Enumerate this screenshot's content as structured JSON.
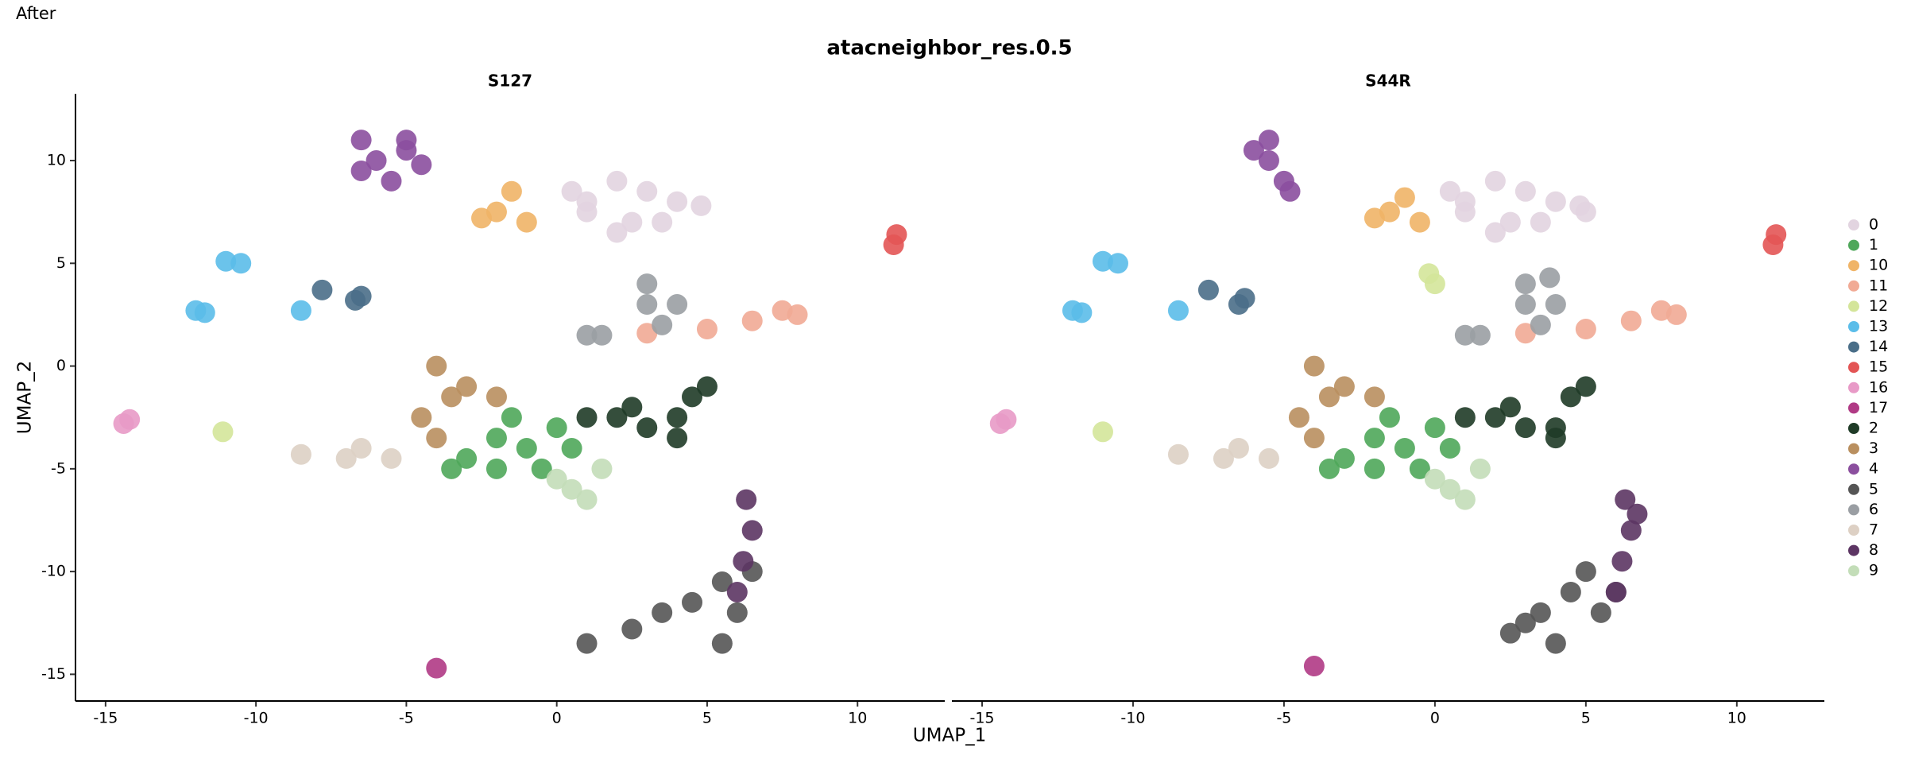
{
  "corner_text": "After",
  "chart_data": {
    "type": "scatter",
    "title": "atacneighbor_res.0.5",
    "x_label": "UMAP_1",
    "y_label": "UMAP_2",
    "xlim": [
      -16,
      12.9
    ],
    "ylim": [
      -16.3,
      13.25
    ],
    "xticks": [
      -15,
      -10,
      -5,
      0,
      5,
      10
    ],
    "yticks": [
      -15,
      -10,
      -5,
      0,
      5,
      10
    ],
    "legend": "right",
    "panels": [
      {
        "title": "S127"
      },
      {
        "title": "S44R"
      }
    ],
    "series": [
      {
        "name": "0",
        "color": "#e2d4e0",
        "x": [
          [
            1,
            2,
            3,
            4,
            2.5,
            1,
            3.5,
            0.5,
            4.8,
            2
          ],
          [
            1,
            2,
            3,
            4,
            2.5,
            1,
            3.5,
            0.5,
            4.8,
            2,
            5
          ]
        ],
        "y": [
          [
            8,
            9,
            8.5,
            8,
            7,
            7.5,
            7,
            8.5,
            7.8,
            6.5
          ],
          [
            8,
            9,
            8.5,
            8,
            7,
            7.5,
            7,
            8.5,
            7.8,
            6.5,
            7.5
          ]
        ]
      },
      {
        "name": "1",
        "color": "#4fa75a",
        "x": [
          [
            -3,
            -2,
            -1,
            0,
            -2,
            -0.5,
            0.5,
            -3.5,
            -1.5
          ],
          [
            -3,
            -2,
            -1,
            0,
            -2,
            -0.5,
            0.5,
            -3.5,
            -1.5
          ]
        ],
        "y": [
          [
            -4.5,
            -3.5,
            -4,
            -3,
            -5,
            -5,
            -4,
            -5,
            -2.5
          ],
          [
            -4.5,
            -3.5,
            -4,
            -3,
            -5,
            -5,
            -4,
            -5,
            -2.5
          ]
        ]
      },
      {
        "name": "10",
        "color": "#f0b467",
        "x": [
          [
            -2,
            -1.5,
            -2.5,
            -1
          ],
          [
            -1.5,
            -1,
            -2,
            -0.5
          ]
        ],
        "y": [
          [
            7.5,
            8.5,
            7.2,
            7
          ],
          [
            7.5,
            8.2,
            7.2,
            7
          ]
        ]
      },
      {
        "name": "11",
        "color": "#f1aa95",
        "x": [
          [
            3,
            5,
            6.5,
            7.5,
            8
          ],
          [
            3,
            5,
            6.5,
            7.5,
            8
          ]
        ],
        "y": [
          [
            1.6,
            1.8,
            2.2,
            2.7,
            2.5
          ],
          [
            1.6,
            1.8,
            2.2,
            2.7,
            2.5
          ]
        ]
      },
      {
        "name": "12",
        "color": "#d4e59a",
        "x": [
          [
            -11.1
          ],
          [
            -11,
            -0.2,
            0
          ]
        ],
        "y": [
          [
            -3.2
          ],
          [
            -3.2,
            4.5,
            4
          ]
        ]
      },
      {
        "name": "13",
        "color": "#5bbde9",
        "x": [
          [
            -11,
            -10.5,
            -12,
            -8.5,
            -11.7
          ],
          [
            -11,
            -10.5,
            -12,
            -8.5,
            -11.7
          ]
        ],
        "y": [
          [
            5.1,
            5,
            2.7,
            2.7,
            2.6
          ],
          [
            5.1,
            5,
            2.7,
            2.7,
            2.6
          ]
        ]
      },
      {
        "name": "14",
        "color": "#4a6e88",
        "x": [
          [
            -7.8,
            -6.5,
            -6.7
          ],
          [
            -7.5,
            -6.5,
            -6.3
          ]
        ],
        "y": [
          [
            3.7,
            3.4,
            3.2
          ],
          [
            3.7,
            3,
            3.3
          ]
        ]
      },
      {
        "name": "15",
        "color": "#e35555",
        "x": [
          [
            11.3,
            11.2
          ],
          [
            11.3,
            11.2
          ]
        ],
        "y": [
          [
            6.4,
            5.9
          ],
          [
            6.4,
            5.9
          ]
        ]
      },
      {
        "name": "16",
        "color": "#e89ac7",
        "x": [
          [
            -14.4,
            -14.2
          ],
          [
            -14.4,
            -14.2
          ]
        ],
        "y": [
          [
            -2.8,
            -2.6
          ],
          [
            -2.8,
            -2.6
          ]
        ]
      },
      {
        "name": "17",
        "color": "#b03a85",
        "x": [
          [
            -4
          ],
          [
            -4
          ]
        ],
        "y": [
          [
            -14.7
          ],
          [
            -14.6
          ]
        ]
      },
      {
        "name": "2",
        "color": "#1f3b27",
        "x": [
          [
            1,
            2,
            3,
            4,
            4.5,
            5,
            4,
            2.5
          ],
          [
            1,
            2,
            3,
            4,
            4.5,
            5,
            4,
            2.5
          ]
        ],
        "y": [
          [
            -2.5,
            -2.5,
            -3,
            -2.5,
            -1.5,
            -1,
            -3.5,
            -2
          ],
          [
            -2.5,
            -2.5,
            -3,
            -3,
            -1.5,
            -1,
            -3.5,
            -2
          ]
        ]
      },
      {
        "name": "3",
        "color": "#b98f5f",
        "x": [
          [
            -4,
            -3.5,
            -4.5,
            -3,
            -2,
            -4
          ],
          [
            -4,
            -3.5,
            -4.5,
            -3,
            -2,
            -4
          ]
        ],
        "y": [
          [
            0,
            -1.5,
            -2.5,
            -1,
            -1.5,
            -3.5
          ],
          [
            0,
            -1.5,
            -2.5,
            -1,
            -1.5,
            -3.5
          ]
        ]
      },
      {
        "name": "4",
        "color": "#8b4f9e",
        "x": [
          [
            -6,
            -5,
            -6.5,
            -5.5,
            -5,
            -6.5,
            -4.5
          ],
          [
            -5.5,
            -5,
            -6,
            -5.5,
            -4.8
          ]
        ],
        "y": [
          [
            10,
            10.5,
            9.5,
            9,
            11,
            11,
            9.8
          ],
          [
            10,
            9,
            10.5,
            11,
            8.5
          ]
        ]
      },
      {
        "name": "5",
        "color": "#555555",
        "x": [
          [
            1,
            2.5,
            3.5,
            4.5,
            5.5,
            5.5,
            6,
            6.5
          ],
          [
            2.5,
            3.5,
            4.5,
            5.5,
            4,
            6,
            3,
            5
          ]
        ],
        "y": [
          [
            -13.5,
            -12.8,
            -12,
            -11.5,
            -10.5,
            -13.5,
            -12,
            -10
          ],
          [
            -13,
            -12,
            -11,
            -12,
            -13.5,
            -11,
            -12.5,
            -10
          ]
        ]
      },
      {
        "name": "6",
        "color": "#9a9ea3",
        "x": [
          [
            3,
            3.5,
            4,
            1.5,
            3,
            1
          ],
          [
            3,
            3.5,
            4,
            1.5,
            3,
            1,
            3.8
          ]
        ],
        "y": [
          [
            3,
            2,
            3,
            1.5,
            4,
            1.5
          ],
          [
            3,
            2,
            3,
            1.5,
            4,
            1.5,
            4.3
          ]
        ]
      },
      {
        "name": "7",
        "color": "#ddd0c4",
        "x": [
          [
            -8.5,
            -7,
            -5.5,
            -6.5
          ],
          [
            -8.5,
            -7,
            -5.5,
            -6.5
          ]
        ],
        "y": [
          [
            -4.3,
            -4.5,
            -4.5,
            -4
          ],
          [
            -4.3,
            -4.5,
            -4.5,
            -4
          ]
        ]
      },
      {
        "name": "8",
        "color": "#5c3563",
        "x": [
          [
            6.3,
            6.5,
            6.2,
            6
          ],
          [
            6.3,
            6.5,
            6.2,
            6,
            6.7
          ]
        ],
        "y": [
          [
            -6.5,
            -8,
            -9.5,
            -11
          ],
          [
            -6.5,
            -8,
            -9.5,
            -11,
            -7.2
          ]
        ]
      },
      {
        "name": "9",
        "color": "#c3ddb8",
        "x": [
          [
            0.5,
            1,
            0,
            1.5
          ],
          [
            0.5,
            1,
            0,
            1.5
          ]
        ],
        "y": [
          [
            -6,
            -6.5,
            -5.5,
            -5
          ],
          [
            -6,
            -6.5,
            -5.5,
            -5
          ]
        ]
      }
    ]
  }
}
